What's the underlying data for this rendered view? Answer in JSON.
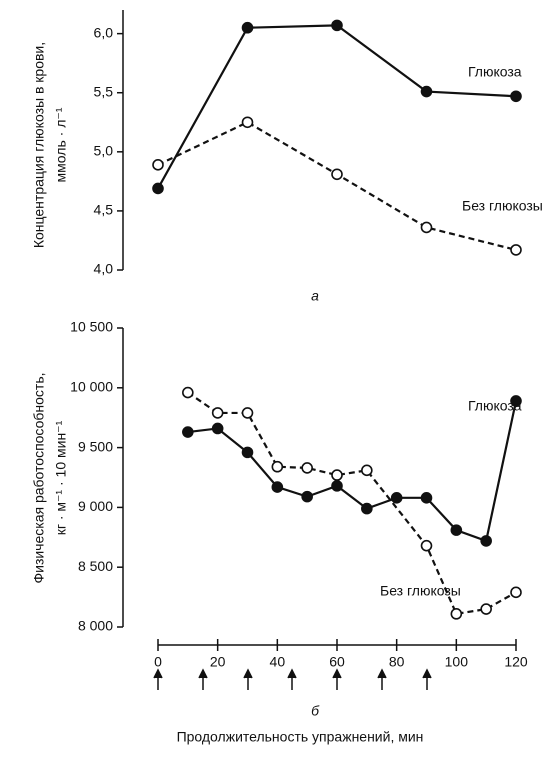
{
  "charts": [
    {
      "type": "line",
      "panel_label": "а",
      "y_label": [
        "Концентрация глюкозы в крови,",
        "ммоль · л⁻¹"
      ],
      "xlim": [
        0,
        120
      ],
      "ylim": [
        4.0,
        6.2
      ],
      "yticks": [
        {
          "value": 4.0,
          "label": "4,0"
        },
        {
          "value": 4.5,
          "label": "4,5"
        },
        {
          "value": 5.0,
          "label": "5,0"
        },
        {
          "value": 5.5,
          "label": "5,5"
        },
        {
          "value": 6.0,
          "label": "6,0"
        }
      ],
      "series": [
        {
          "name": "Глюкоза",
          "color": "#111",
          "marker_fill": "#111",
          "line_style": "solid",
          "x": [
            0,
            30,
            60,
            90,
            120
          ],
          "values": [
            4.69,
            6.05,
            6.07,
            5.51,
            5.47
          ]
        },
        {
          "name": "Без глюкозы",
          "color": "#111",
          "marker_fill": "#fff",
          "line_style": "dashed",
          "x": [
            0,
            30,
            60,
            90,
            120
          ],
          "values": [
            4.89,
            5.25,
            4.81,
            4.36,
            4.17
          ]
        }
      ]
    },
    {
      "type": "line",
      "panel_label": "б",
      "y_label": [
        "Физическая работоспособность,",
        "кг · м⁻¹ · 10 мин⁻¹"
      ],
      "x_label": "Продолжительность упражнений, мин",
      "xlim": [
        0,
        120
      ],
      "ylim": [
        8000,
        10500
      ],
      "xticks": [
        0,
        20,
        40,
        60,
        80,
        100,
        120
      ],
      "yticks": [
        {
          "value": 8000,
          "label": "8 000"
        },
        {
          "value": 8500,
          "label": "8 500"
        },
        {
          "value": 9000,
          "label": "9 000"
        },
        {
          "value": 9500,
          "label": "9 500"
        },
        {
          "value": 10000,
          "label": "10 000"
        },
        {
          "value": 10500,
          "label": "10 500"
        }
      ],
      "series": [
        {
          "name": "Глюкоза",
          "color": "#111",
          "marker_fill": "#111",
          "line_style": "solid",
          "x": [
            10,
            20,
            30,
            40,
            50,
            60,
            70,
            80,
            90,
            100,
            110,
            120
          ],
          "values": [
            9630,
            9660,
            9460,
            9170,
            9090,
            9180,
            8990,
            9080,
            9080,
            8810,
            8720,
            9890
          ]
        },
        {
          "name": "Без глюкозы",
          "color": "#111",
          "marker_fill": "#fff",
          "line_style": "dashed",
          "x": [
            10,
            20,
            30,
            40,
            50,
            60,
            70,
            90,
            100,
            110,
            120
          ],
          "values": [
            9960,
            9790,
            9790,
            9340,
            9330,
            9270,
            9310,
            8680,
            8110,
            8150,
            8290
          ]
        }
      ]
    }
  ]
}
